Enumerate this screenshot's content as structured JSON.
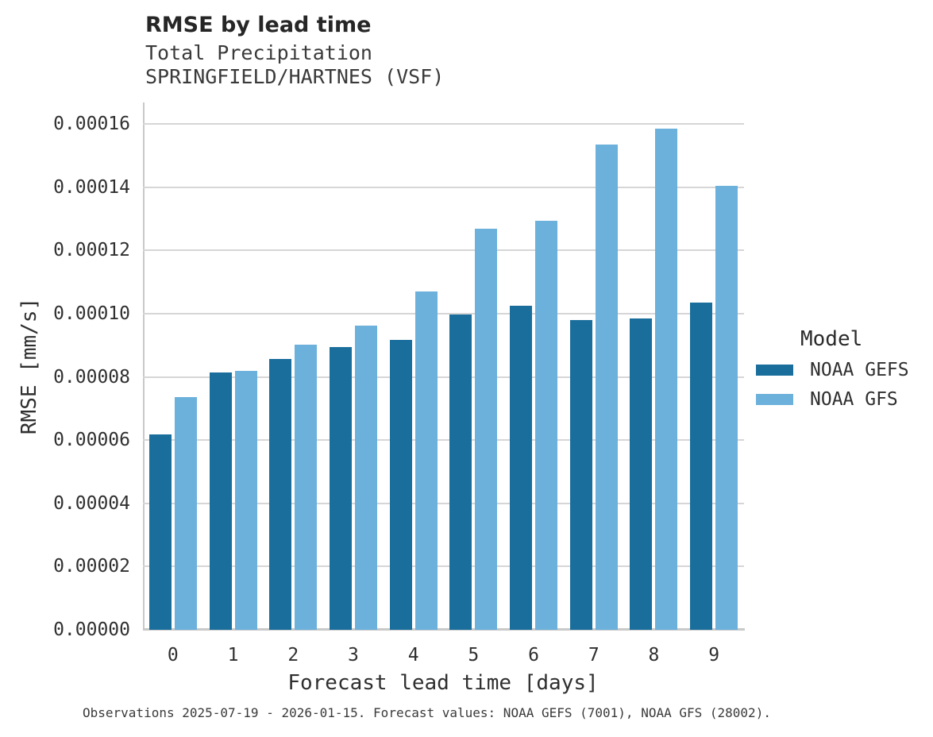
{
  "chart_data": {
    "type": "bar",
    "title": "RMSE by lead time",
    "subtitle_lines": [
      "Total Precipitation",
      "SPRINGFIELD/HARTNES (VSF)"
    ],
    "xlabel": "Forecast lead time [days]",
    "ylabel": "RMSE [mm/s]",
    "categories": [
      "0",
      "1",
      "2",
      "3",
      "4",
      "5",
      "6",
      "7",
      "8",
      "9"
    ],
    "series": [
      {
        "name": "NOAA GEFS",
        "color": "#1A6E9C",
        "values": [
          6.17e-05,
          8.13e-05,
          8.56e-05,
          8.93e-05,
          9.18e-05,
          9.97e-05,
          0.0001025,
          9.79e-05,
          9.84e-05,
          0.0001035
        ]
      },
      {
        "name": "NOAA GFS",
        "color": "#6CB1DB",
        "values": [
          7.37e-05,
          8.18e-05,
          9.03e-05,
          9.63e-05,
          0.000107,
          0.0001268,
          0.0001293,
          0.0001535,
          0.0001585,
          0.0001403
        ]
      }
    ],
    "ylim": [
      0,
      0.00016
    ],
    "yticks": [
      0,
      2e-05,
      4e-05,
      6e-05,
      8e-05,
      0.0001,
      0.00012,
      0.00014,
      0.00016
    ],
    "ytick_labels": [
      "0.00000",
      "0.00002",
      "0.00004",
      "0.00006",
      "0.00008",
      "0.00010",
      "0.00012",
      "0.00014",
      "0.00016"
    ],
    "grid": true,
    "legend": {
      "title": "Model",
      "position": "right"
    },
    "footnote": "Observations 2025-07-19 - 2026-01-15. Forecast values: NOAA GEFS (7001), NOAA GFS (28002)."
  },
  "style": {
    "grid_color": "#d6d6d6",
    "spine_color": "#c9c9c9",
    "text_color": "#2b2b2b"
  }
}
